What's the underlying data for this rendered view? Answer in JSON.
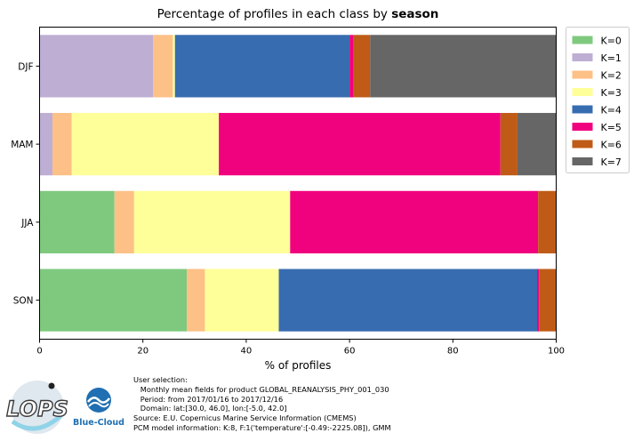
{
  "chart_data": {
    "type": "bar",
    "orientation": "horizontal",
    "stacked": true,
    "title_prefix": "Percentage of profiles in each class by ",
    "title_bold": "season",
    "xlabel": "% of profiles",
    "ylabel": "",
    "xlim": [
      0,
      100
    ],
    "xticks": [
      "0",
      "20",
      "40",
      "60",
      "80",
      "100"
    ],
    "categories": [
      "DJF",
      "MAM",
      "JJA",
      "SON"
    ],
    "grid": false,
    "legend_position": "outside-top-right",
    "series": [
      {
        "name": "K=0",
        "color": "#7fc97f",
        "values": [
          0.0,
          0.0,
          14.5,
          28.5
        ]
      },
      {
        "name": "K=1",
        "color": "#beaed4",
        "values": [
          22.0,
          2.5,
          0.0,
          0.0
        ]
      },
      {
        "name": "K=2",
        "color": "#fdc086",
        "values": [
          3.8,
          3.7,
          3.8,
          3.5
        ]
      },
      {
        "name": "K=3",
        "color": "#ffff99",
        "values": [
          0.4,
          28.5,
          30.2,
          14.3
        ]
      },
      {
        "name": "K=4",
        "color": "#386cb0",
        "values": [
          33.8,
          0.0,
          0.0,
          50.0
        ]
      },
      {
        "name": "K=5",
        "color": "#f0027f",
        "values": [
          0.8,
          54.5,
          48.0,
          0.4
        ]
      },
      {
        "name": "K=6",
        "color": "#bf5b17",
        "values": [
          3.2,
          3.3,
          3.5,
          3.3
        ]
      },
      {
        "name": "K=7",
        "color": "#666666",
        "values": [
          36.0,
          7.5,
          0.0,
          0.0
        ]
      }
    ]
  },
  "footer": {
    "lines": [
      "User selection:",
      "   Monthly mean fields for product GLOBAL_REANALYSIS_PHY_001_030",
      "   Period: from 2017/01/16 to 2017/12/16",
      "   Domain: lat:[30.0, 46.0], lon:[-5.0, 42.0]",
      "Source: E.U. Copernicus Marine Service Information (CMEMS)",
      "PCM model information: K:8, F:1('temperature':[-0.49:-2225.08]), GMM"
    ]
  },
  "logos": {
    "lops_text": "LOPS",
    "bluecloud_text": "Blue-Cloud",
    "lops_icon": "lops-logo",
    "bluecloud_icon": "blue-cloud-logo"
  }
}
